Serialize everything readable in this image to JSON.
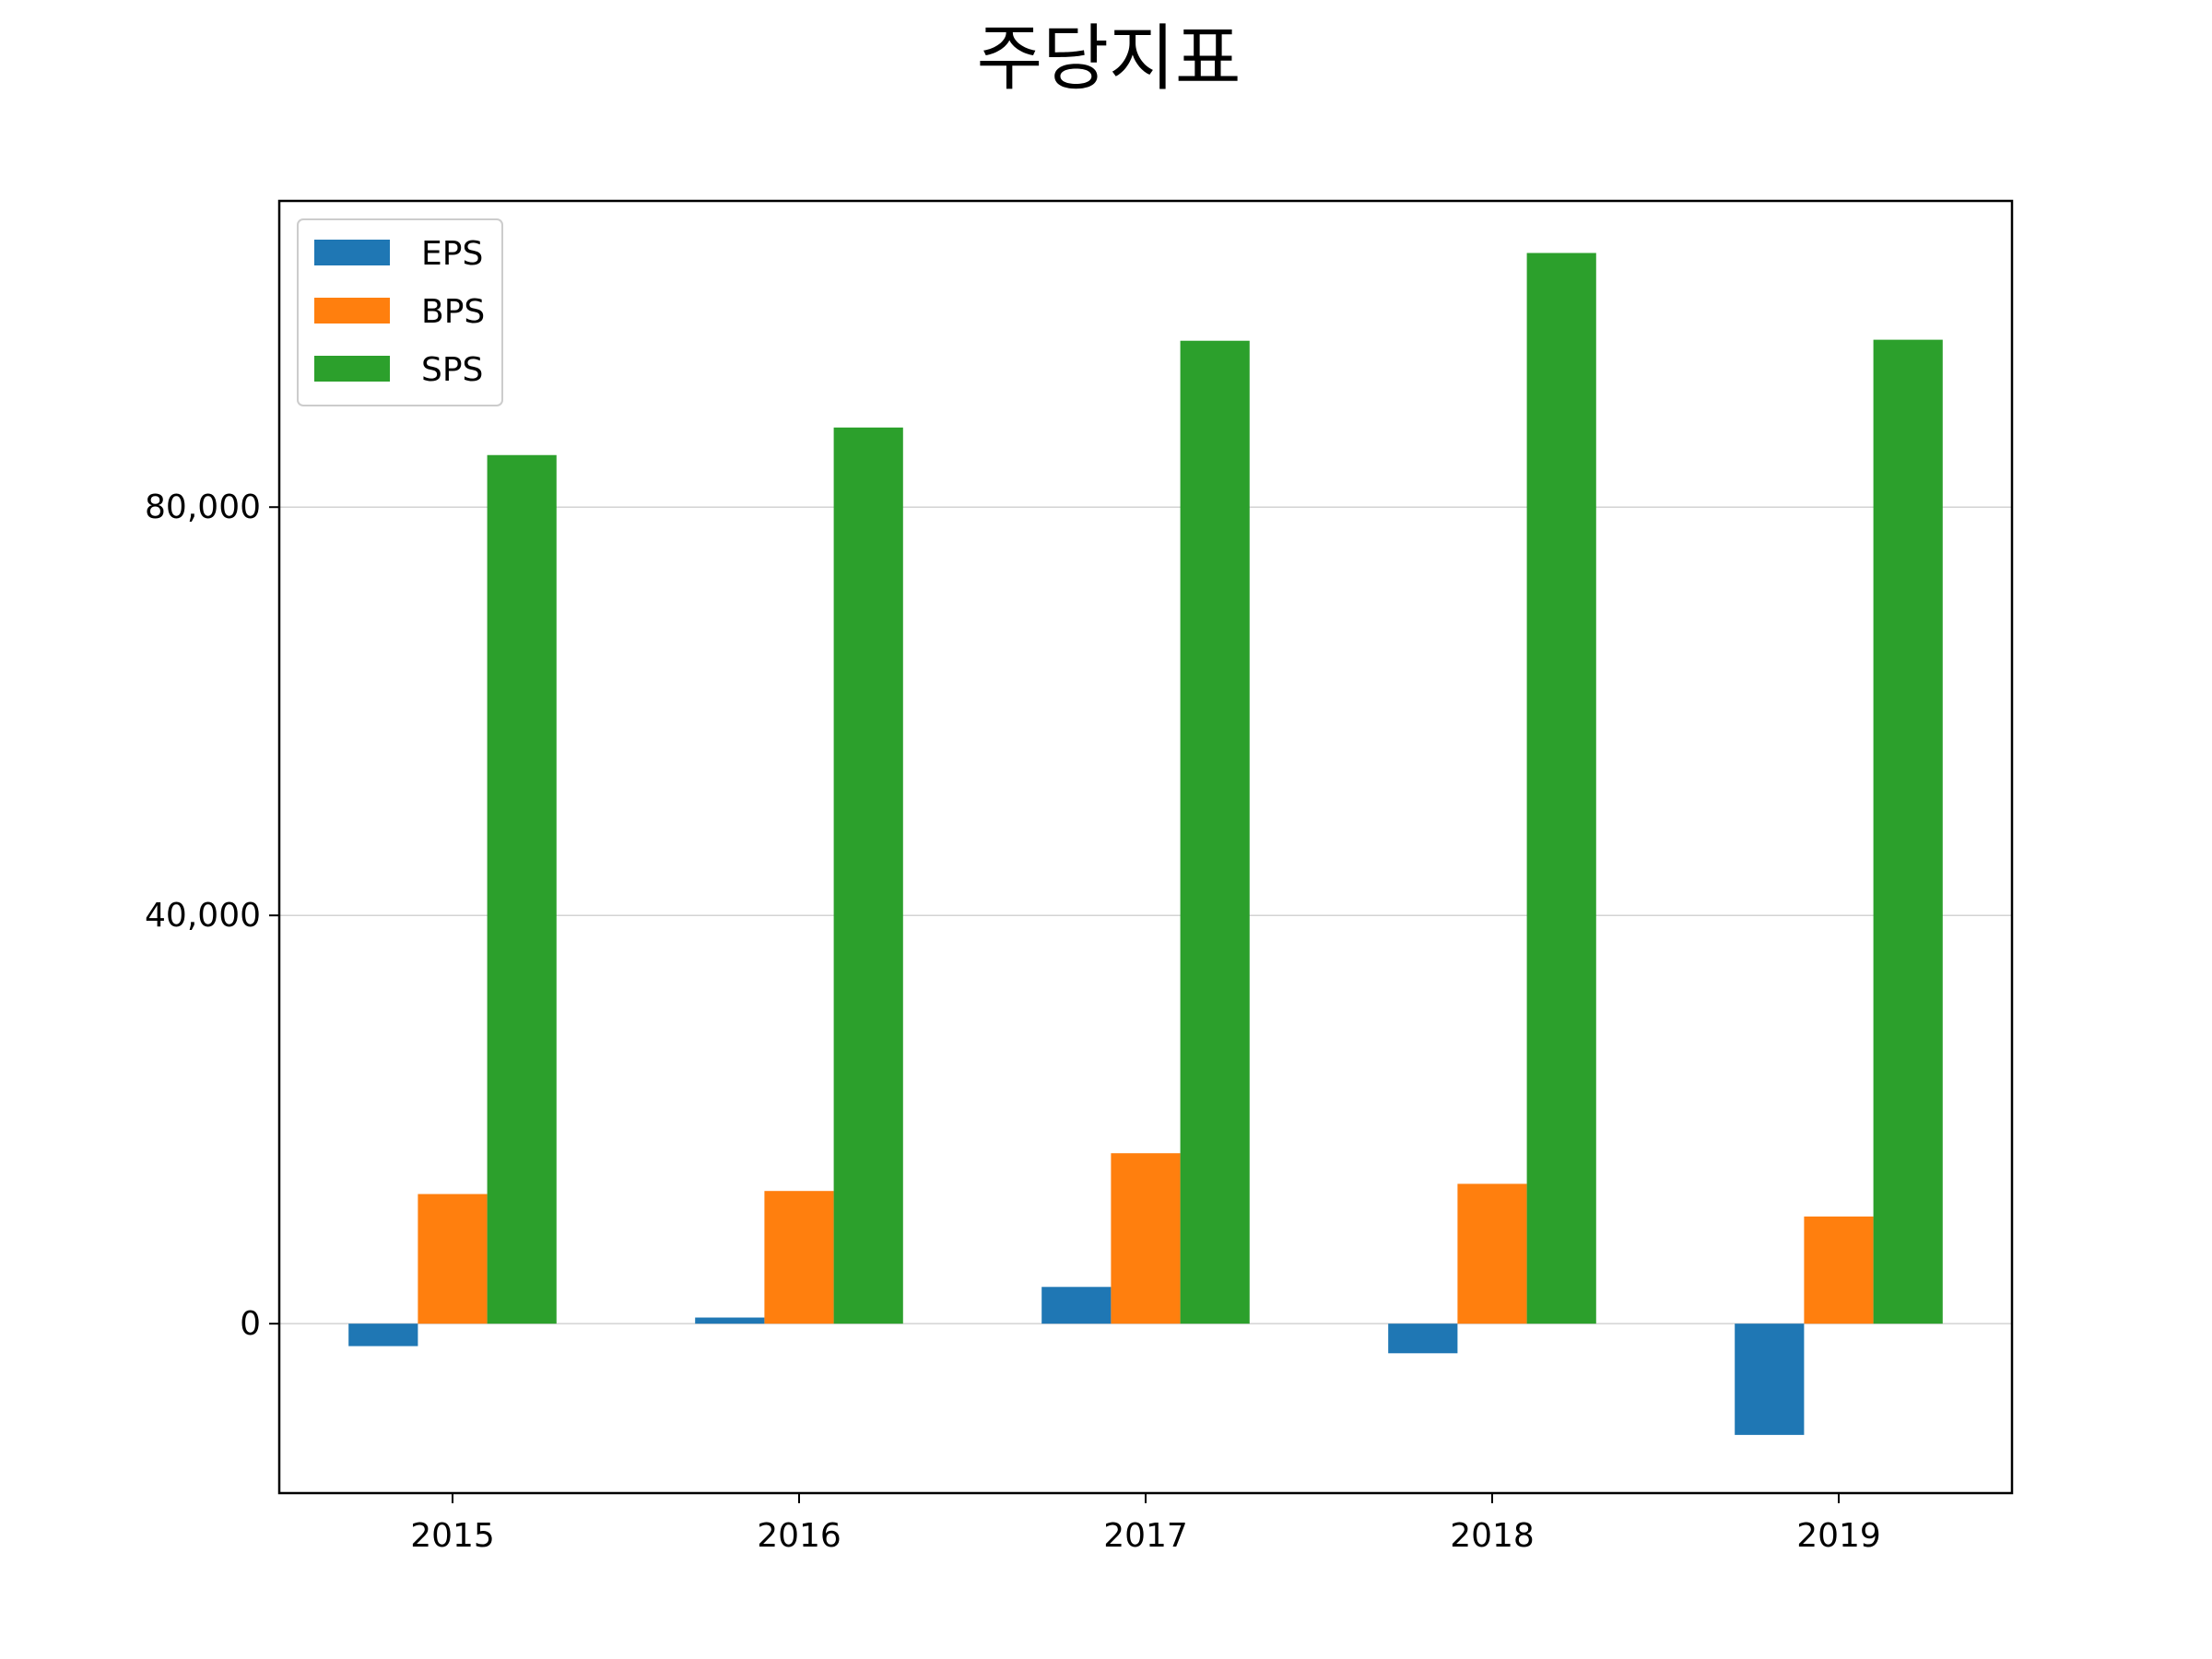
{
  "chart_data": {
    "type": "bar",
    "title": "주당지표",
    "xlabel": "",
    "ylabel": "",
    "categories": [
      "2015",
      "2016",
      "2017",
      "2018",
      "2019"
    ],
    "series": [
      {
        "name": "EPS",
        "color": "#1f77b4",
        "values": [
          -2200,
          600,
          3600,
          -2900,
          -10900
        ]
      },
      {
        "name": "BPS",
        "color": "#ff7f0e",
        "values": [
          12700,
          13000,
          16700,
          13700,
          10500
        ]
      },
      {
        "name": "SPS",
        "color": "#2ca02c",
        "values": [
          85100,
          87800,
          96300,
          104900,
          96400
        ]
      }
    ],
    "ylim": [
      -16600,
      110000
    ],
    "yticks": [
      0,
      40000,
      80000
    ],
    "ytick_labels": [
      "0",
      "40,000",
      "80,000"
    ],
    "grid": "horizontal",
    "legend_position": "top-left"
  }
}
